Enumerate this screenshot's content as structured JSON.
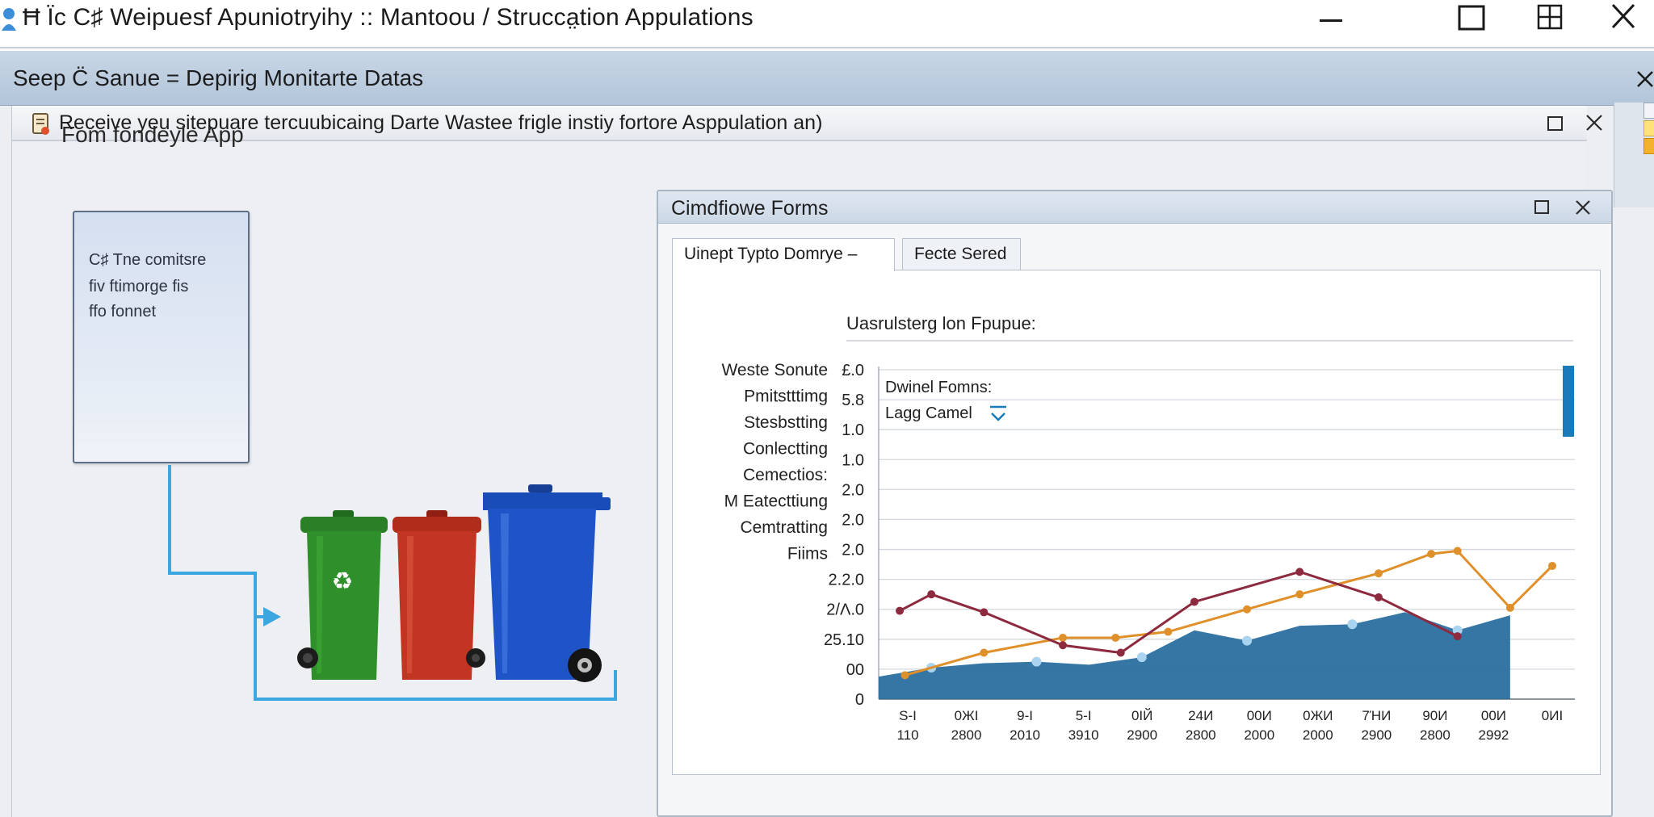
{
  "window": {
    "title": "Ħ Ϊc C♯ Weipuesf Apuniotryihy :: Mantoou / Strucca̤tion Appulations",
    "controls": {
      "minimize": "minimize",
      "maximize": "maximize",
      "snap": "snap",
      "close": "close"
    }
  },
  "outer_panel": {
    "title": "Seep C̈ Sanue = Depirig Monitarte Datas"
  },
  "inner_window": {
    "title": "Receive yeu sitepuare tercuubicaing Darte Wastee frigle instiy fortore Asppulation an)"
  },
  "left_panel": {
    "heading": "Fom fondeyle App",
    "box_lines": [
      "C♯ Tne comitsre",
      "fiv ftimorge fis",
      "ffo fonnet"
    ]
  },
  "bins": [
    {
      "name": "green-bin",
      "color": "#2f8f2a",
      "label": "♻"
    },
    {
      "name": "red-bin",
      "color": "#c23522"
    },
    {
      "name": "blue-bin",
      "color": "#1f54c8"
    }
  ],
  "forms_window": {
    "title": "Cimdfiowe Forms",
    "tabs": [
      {
        "label": "Uinept Typto Domrye –",
        "active": true
      },
      {
        "label": "Fecte Sered",
        "active": false
      }
    ],
    "chart_title": "Uasrulsterg lon Fpupue:",
    "side_labels": [
      "Weste Sonute",
      "Pmitstttimg",
      "Stesbstting",
      "Conlectting",
      "Cemectios:",
      "M Eatecttiung",
      "Cemtratting",
      "Fiims"
    ],
    "inline_label": "Dwinel Fomns:",
    "dropdown_value": "Lagg Camel"
  },
  "chart_data": {
    "type": "line",
    "title": "Uasrulsterg lon Fpupue:",
    "y_tick_labels": [
      "£.0",
      "5.8",
      "1.0",
      "1.0",
      "2.0",
      "2.0",
      "2.0",
      "2.2.0",
      "2/Λ.0",
      "25.10",
      "00",
      "0"
    ],
    "x_tick_labels": [
      [
        "S‑I",
        "110"
      ],
      [
        "0ЖI",
        "2800"
      ],
      [
        "9‑I",
        "2010"
      ],
      [
        "5‑I",
        "3910"
      ],
      [
        "0IЙ",
        "2900"
      ],
      [
        "24И",
        "2800"
      ],
      [
        "00И",
        "2000"
      ],
      [
        "0ЖИ",
        "2000"
      ],
      [
        "7ΉИ",
        "2900"
      ],
      [
        "90И",
        "2800"
      ],
      [
        "00И",
        "2992"
      ],
      [
        "0ИI",
        ""
      ]
    ],
    "series": [
      {
        "color": "#2a6fa0",
        "values": [
          0.75,
          1.05,
          1.2,
          1.25,
          1.15,
          1.4,
          2.3,
          1.95,
          2.45,
          2.5,
          2.9,
          2.3,
          2.8
        ],
        "x": [
          0,
          1,
          2,
          3,
          4,
          5,
          6,
          7,
          8,
          9,
          10,
          11,
          12
        ]
      },
      {
        "color": "#e0902a",
        "values": [
          0.8,
          1.55,
          2.05,
          2.05,
          2.25,
          3.0,
          3.5,
          4.2,
          4.85,
          4.95,
          3.05,
          4.45
        ],
        "x": [
          0.5,
          2,
          3.5,
          4.5,
          5.5,
          7,
          8,
          9.5,
          10.5,
          11,
          12,
          12.8
        ]
      },
      {
        "color": "#8e2a3f",
        "values": [
          2.95,
          3.5,
          2.9,
          1.8,
          1.55,
          3.25,
          4.25,
          3.4,
          2.1
        ],
        "x": [
          0.4,
          1,
          2,
          3.5,
          4.6,
          6,
          8,
          9.5,
          11
        ]
      }
    ],
    "ylim": [
      0,
      11
    ],
    "grid": true
  }
}
